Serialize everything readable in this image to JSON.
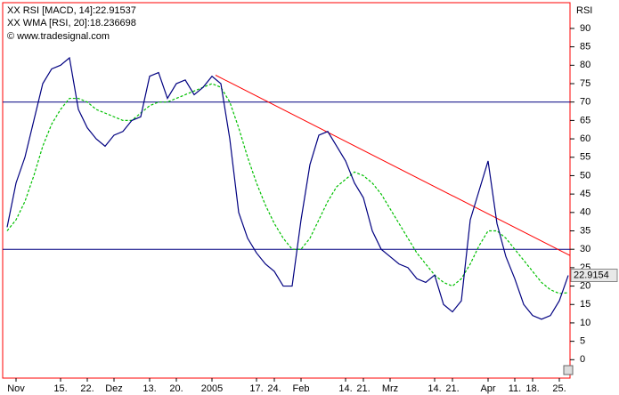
{
  "chart_data": {
    "type": "line",
    "y_axis_label": "RSI",
    "legend_lines": [
      "XX RSI [MACD, 14]:22.91537",
      "XX WMA [RSI, 20]:18.236698"
    ],
    "copyright": "© www.tradesignal.com",
    "categories": [
      null,
      "Nov",
      null,
      null,
      null,
      null,
      "15.",
      null,
      null,
      "22.",
      null,
      null,
      "Dez",
      null,
      null,
      null,
      "13.",
      null,
      null,
      "20.",
      null,
      null,
      null,
      "2005",
      null,
      null,
      null,
      null,
      "17.",
      null,
      "24.",
      null,
      null,
      "Feb",
      null,
      null,
      null,
      null,
      "14.",
      null,
      "21.",
      null,
      null,
      "Mrz",
      null,
      null,
      null,
      null,
      "14.",
      null,
      "21.",
      null,
      null,
      null,
      "Apr",
      null,
      null,
      "11.",
      null,
      "18.",
      null,
      null,
      "25.",
      null
    ],
    "series": [
      {
        "name": "XX RSI [MACD, 14]",
        "color": "#000080",
        "dashed": false,
        "values": [
          36,
          48,
          55,
          65,
          75,
          79,
          80,
          82,
          68,
          63,
          60,
          58,
          61,
          62,
          65,
          66,
          77,
          78,
          71,
          75,
          76,
          72,
          74,
          77,
          75,
          60,
          40,
          33,
          29,
          26,
          24,
          20,
          20,
          38,
          53,
          61,
          62,
          58,
          54,
          48,
          44,
          35,
          30,
          28,
          26,
          25,
          22,
          21,
          23,
          15,
          13,
          16,
          38,
          46,
          54,
          37,
          28,
          22,
          15,
          12,
          11,
          12,
          16,
          22.9
        ]
      },
      {
        "name": "XX WMA [RSI, 20]",
        "color": "#00c000",
        "dashed": true,
        "values": [
          35,
          38,
          43,
          50,
          58,
          64,
          68,
          71,
          71,
          70,
          68,
          67,
          66,
          65,
          65,
          67,
          69,
          70,
          70,
          71,
          72,
          73,
          74,
          75,
          74,
          70,
          63,
          55,
          48,
          42,
          37,
          33,
          30,
          30,
          33,
          38,
          43,
          47,
          49,
          51,
          50,
          48,
          45,
          41,
          37,
          33,
          29,
          26,
          23,
          21,
          20,
          22,
          26,
          31,
          35,
          35,
          33,
          30,
          27,
          24,
          21,
          19,
          18,
          18.2
        ]
      }
    ],
    "hlines": {
      "values": [
        70,
        30
      ],
      "color": "#000080"
    },
    "trendline": {
      "color": "#ff0000",
      "start": [
        23.4,
        77.3
      ],
      "end": [
        63.2,
        28.3
      ]
    },
    "last_value": {
      "value": 22.9154,
      "label": "22.9154"
    },
    "ylim": [
      -5,
      97
    ],
    "yticks": [
      0,
      5,
      10,
      15,
      20,
      25,
      30,
      35,
      40,
      45,
      50,
      55,
      60,
      65,
      70,
      75,
      80,
      85,
      90
    ],
    "frame_color": "#ff0000"
  }
}
